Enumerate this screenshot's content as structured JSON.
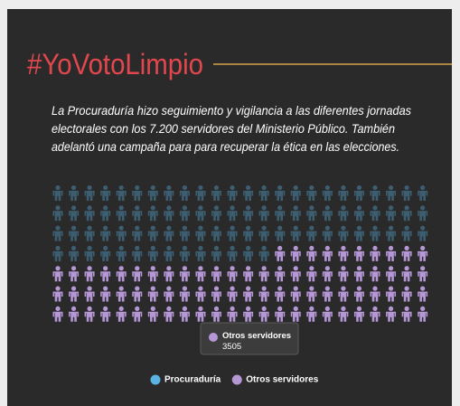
{
  "chart_data": {
    "type": "pictogram",
    "title": "#YoVotoLimpio",
    "subtitle": [
      "La Procuraduría hizo seguimiento y vigilancia a las diferentes jornadas",
      "electorales con los 7.200 servidores del Ministerio Público. También",
      "adelantó una campaña para para recuperar la ética en las elecciones."
    ],
    "categories": [
      "Procuraduría",
      "Otros servidores"
    ],
    "values": [
      3695,
      3505
    ],
    "colors": [
      "#5ab4e3",
      "#b597d6"
    ],
    "title_color": "#e2474d",
    "highlight": 1
  }
}
